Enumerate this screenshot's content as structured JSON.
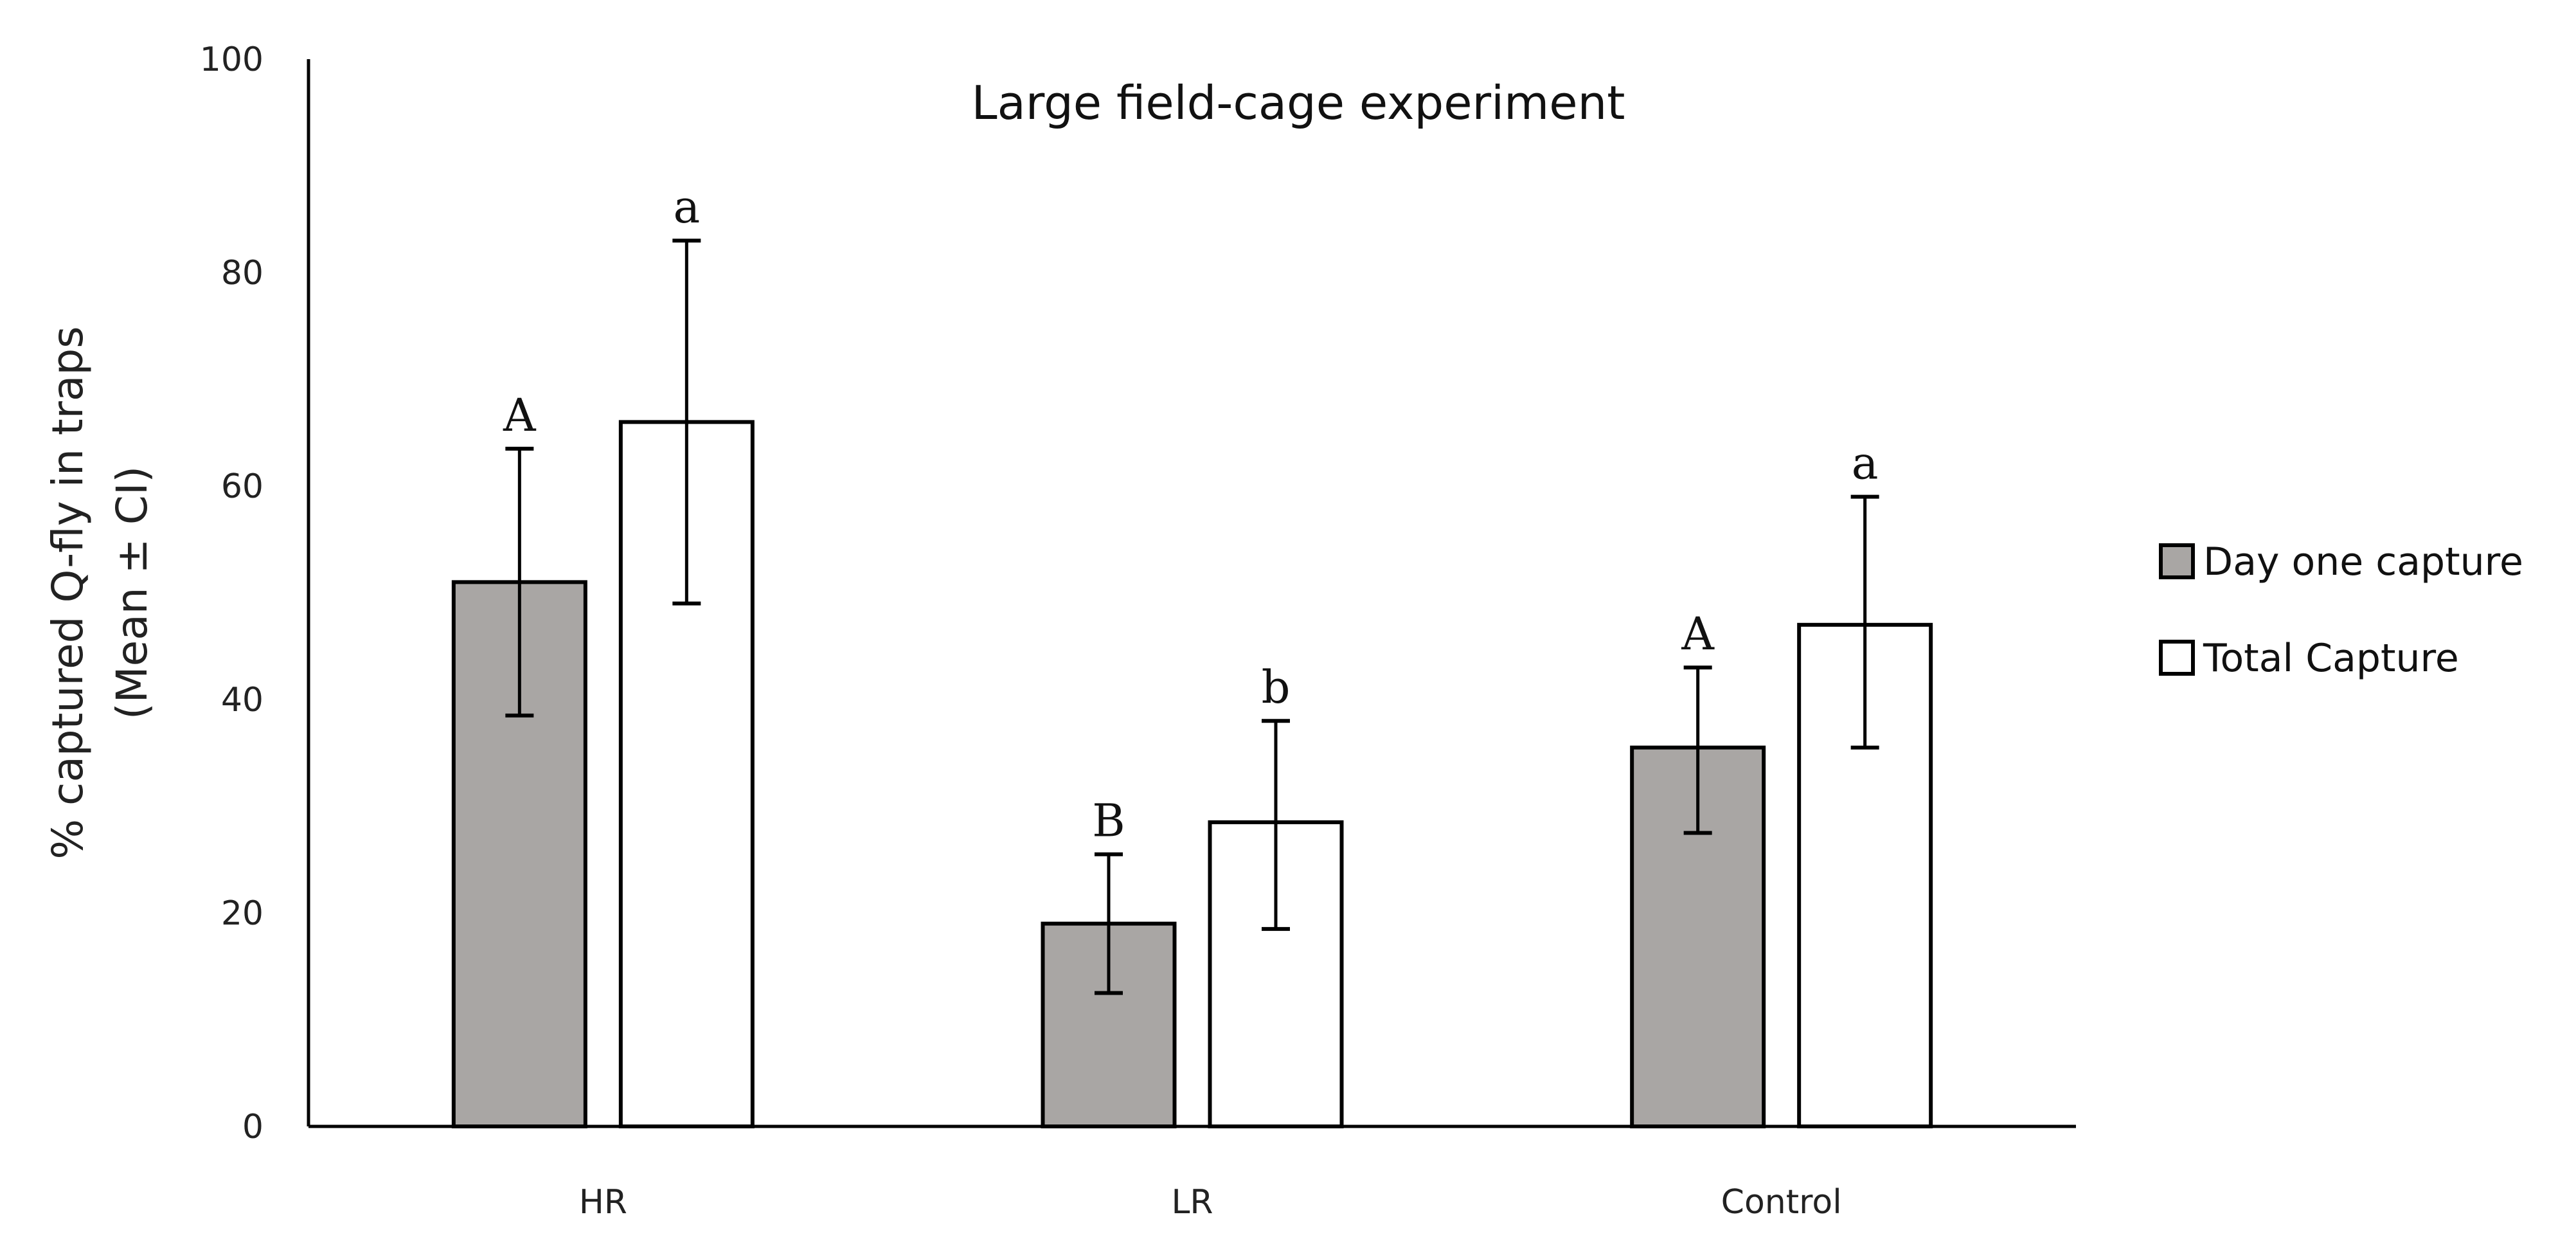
{
  "chart_data": {
    "type": "bar",
    "title": "Large field-cage experiment",
    "xlabel": "",
    "ylabel": [
      "% captured Q-fly in traps",
      "(Mean ± CI)"
    ],
    "ylim": [
      0,
      100
    ],
    "yticks": [
      0,
      20,
      40,
      60,
      80,
      100
    ],
    "grid": false,
    "categories": [
      "HR",
      "LR",
      "Control"
    ],
    "series": [
      {
        "name": "Day one capture",
        "color": "#a9a6a4",
        "values": [
          51,
          19,
          35.5
        ],
        "ci_low": [
          38.5,
          12.5,
          27.5
        ],
        "ci_high": [
          63.5,
          25.5,
          43
        ],
        "labels": [
          "A",
          "B",
          "A"
        ]
      },
      {
        "name": "Total Capture",
        "color": "#ffffff",
        "values": [
          66,
          28.5,
          47
        ],
        "ci_low": [
          49,
          18.5,
          35.5
        ],
        "ci_high": [
          83,
          38,
          59
        ],
        "labels": [
          "a",
          "b",
          "a"
        ]
      }
    ],
    "legend_position": "right"
  }
}
